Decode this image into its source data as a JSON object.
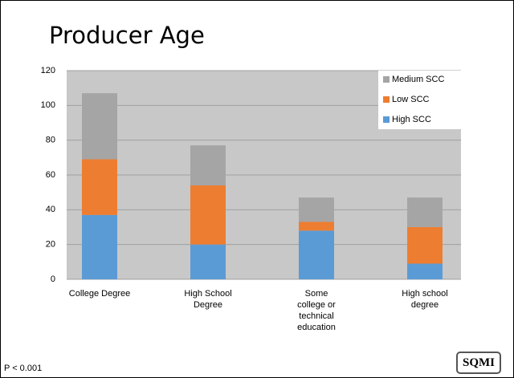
{
  "chart_data": {
    "type": "stacked_bar",
    "title": "Producer Age",
    "categories": [
      "College Degree",
      "High School Degree",
      "Some college or technical education",
      "High school degree"
    ],
    "series": [
      {
        "name": "High SCC",
        "color": "#5b9bd5",
        "values": [
          37,
          20,
          28,
          9
        ]
      },
      {
        "name": "Low SCC",
        "color": "#ed7d31",
        "values": [
          32,
          34,
          5,
          21
        ]
      },
      {
        "name": "Medium SCC",
        "color": "#a5a5a5",
        "values": [
          38,
          23,
          14,
          17
        ]
      }
    ],
    "ylim": [
      0,
      120
    ],
    "yticks": [
      0,
      20,
      40,
      60,
      80,
      100,
      120
    ],
    "grid": true,
    "legend": "upper right",
    "annotation": "P < 0.001",
    "logo": "SQMI"
  }
}
